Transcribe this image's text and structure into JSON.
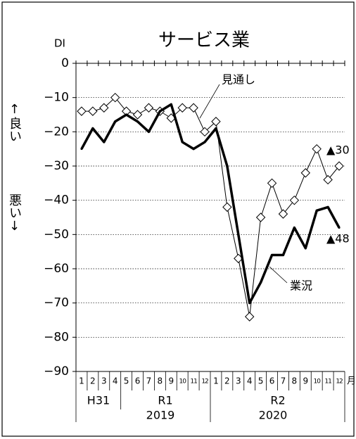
{
  "chart_data": {
    "type": "line",
    "title": "サービス業",
    "y_label": "DI",
    "good_label": "↑良い",
    "bad_label": "悪い↓",
    "categories": [
      "1",
      "2",
      "3",
      "4",
      "5",
      "6",
      "7",
      "8",
      "9",
      "10",
      "11",
      "12",
      "1",
      "2",
      "3",
      "4",
      "5",
      "6",
      "7",
      "8",
      "9",
      "10",
      "11",
      "12"
    ],
    "x_unit": "月",
    "eras": [
      "H31",
      "R1",
      "R2"
    ],
    "years": [
      "2019",
      "2020"
    ],
    "series": [
      {
        "name": "見通し",
        "color": "#000000",
        "marker": "diamond",
        "values": [
          -14,
          -14,
          -13,
          -10,
          -14,
          -15,
          -13,
          -14,
          -16,
          -13,
          -13,
          -20,
          -17,
          -42,
          -57,
          -74,
          -45,
          -35,
          -44,
          -40,
          -32,
          -25,
          -34,
          -30
        ]
      },
      {
        "name": "業況",
        "color": "#000000",
        "marker": "none",
        "values": [
          -25,
          -19,
          -23,
          -17,
          -15,
          -17,
          -20,
          -14,
          -12,
          -23,
          -25,
          -23,
          -19,
          -30,
          -50,
          -70,
          -64,
          -56,
          -56,
          -48,
          -54,
          -43,
          -42,
          -48
        ]
      }
    ],
    "annotations": [
      "▲30",
      "▲48"
    ],
    "ylim": [
      -90,
      0
    ],
    "yticks": [
      0,
      {
        "value": -10,
        "label": "−10"
      },
      {
        "value": -20,
        "label": "−20"
      },
      {
        "value": -30,
        "label": "−30"
      },
      {
        "value": -40,
        "label": "−40"
      },
      {
        "value": -50,
        "label": "−50"
      },
      {
        "value": -60,
        "label": "−60"
      },
      {
        "value": -70,
        "label": "−70"
      },
      {
        "value": -80,
        "label": "−80"
      },
      {
        "value": -90,
        "label": "−90"
      }
    ],
    "grid": true
  }
}
